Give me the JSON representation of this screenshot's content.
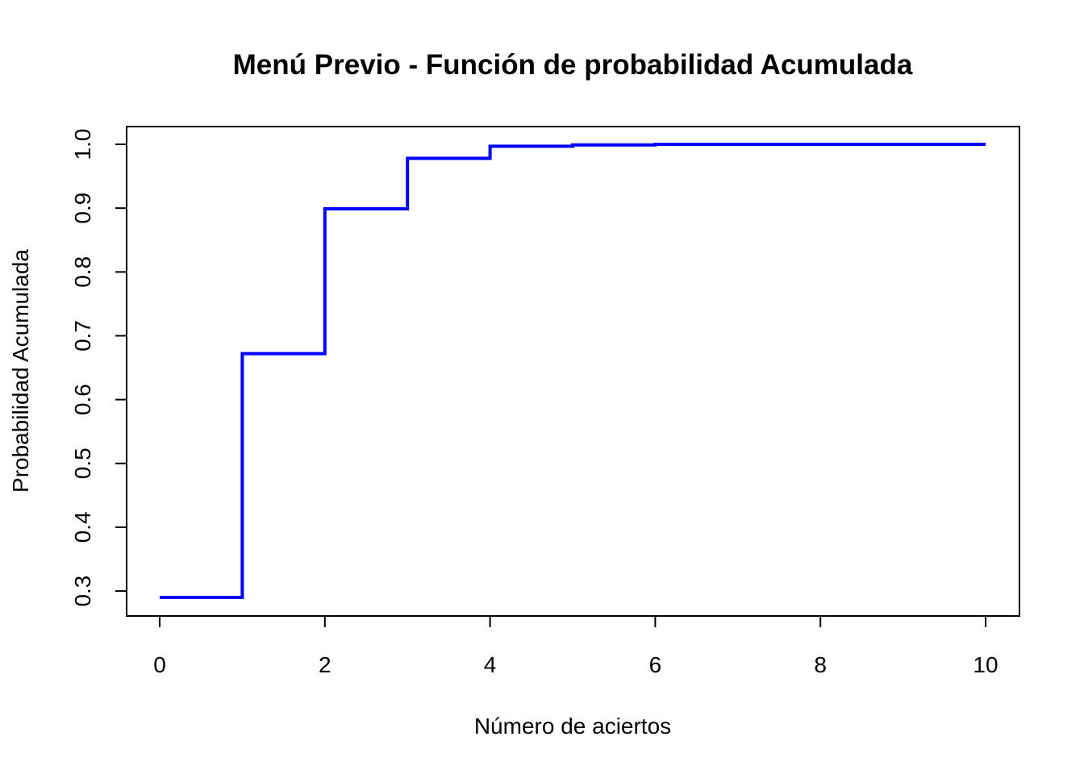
{
  "chart_data": {
    "type": "line",
    "style": "step",
    "title": "Menú Previo - Función de probabilidad Acumulada",
    "xlabel": "Número de aciertos",
    "ylabel": "Probabilidad Acumulada",
    "xlim": [
      0,
      10
    ],
    "ylim": [
      0.29,
      1.0
    ],
    "x_ticks": [
      0,
      2,
      4,
      6,
      8,
      10
    ],
    "x_tick_labels": [
      "0",
      "2",
      "4",
      "6",
      "8",
      "10"
    ],
    "y_ticks": [
      0.3,
      0.4,
      0.5,
      0.6,
      0.7,
      0.8,
      0.9,
      1.0
    ],
    "y_tick_labels": [
      "0.3",
      "0.4",
      "0.5",
      "0.6",
      "0.7",
      "0.8",
      "0.9",
      "1.0"
    ],
    "grid": false,
    "legend": "none",
    "series": [
      {
        "color": "#0000ff",
        "x": [
          0,
          1,
          2,
          3,
          4,
          5,
          6,
          7,
          8,
          9,
          10
        ],
        "y": [
          0.29,
          0.672,
          0.899,
          0.978,
          0.997,
          0.999,
          1.0,
          1.0,
          1.0,
          1.0,
          1.0
        ]
      }
    ]
  }
}
